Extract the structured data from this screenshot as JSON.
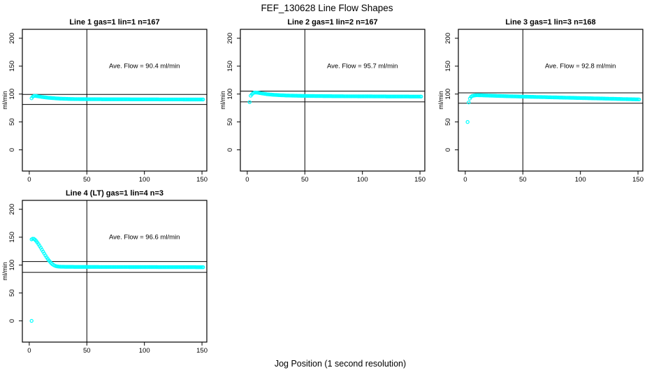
{
  "figure": {
    "title": "FEF_130628  Line Flow Shapes",
    "xlabel": "Jog Position (1 second resolution)",
    "background_color": "#ffffff",
    "point_color": "#00ffff",
    "line_color": "#000000",
    "point_style": "open-circle"
  },
  "chart_data": [
    {
      "type": "scatter",
      "title": "Line 1 gas=1 lin=1 n=167",
      "n": 167,
      "ylabel": "ml/min",
      "annotation": "Ave. Flow =  90.4  ml/min",
      "ave_flow_ml_min": 90.4,
      "annotation_xy": [
        100,
        150
      ],
      "xticks": [
        0,
        50,
        100,
        150
      ],
      "yticks": [
        0,
        50,
        100,
        150,
        200
      ],
      "xlim": [
        -6,
        154.2
      ],
      "ylim": [
        -38,
        216
      ],
      "vline_x": 50,
      "hlines": [
        99.4,
        81.4
      ],
      "grid": false,
      "legend": "none",
      "sample_step": 1,
      "points_keyframes": [
        [
          2,
          92.5
        ],
        [
          3,
          95.3
        ],
        [
          4,
          96.5
        ],
        [
          5,
          96.8
        ],
        [
          6,
          96.5
        ],
        [
          8,
          95.8
        ],
        [
          10,
          95.1
        ],
        [
          12,
          94.5
        ],
        [
          14,
          94.0
        ],
        [
          16,
          93.5
        ],
        [
          18,
          93.1
        ],
        [
          20,
          92.8
        ],
        [
          23,
          92.3
        ],
        [
          26,
          91.9
        ],
        [
          30,
          91.5
        ],
        [
          35,
          91.2
        ],
        [
          40,
          91.0
        ],
        [
          50,
          90.8
        ],
        [
          60,
          90.7
        ],
        [
          80,
          90.6
        ],
        [
          100,
          90.5
        ],
        [
          120,
          90.4
        ],
        [
          151,
          90.2
        ]
      ],
      "extra_points": []
    },
    {
      "type": "scatter",
      "title": "Line 2 gas=1 lin=2 n=167",
      "n": 167,
      "ylabel": "ml/min",
      "annotation": "Ave. Flow =  95.7  ml/min",
      "ave_flow_ml_min": 95.7,
      "annotation_xy": [
        100,
        150
      ],
      "xticks": [
        0,
        50,
        100,
        150
      ],
      "yticks": [
        0,
        50,
        100,
        150,
        200
      ],
      "xlim": [
        -6,
        154.2
      ],
      "ylim": [
        -38,
        216
      ],
      "vline_x": 50,
      "hlines": [
        105.3,
        86.1
      ],
      "grid": false,
      "legend": "none",
      "sample_step": 1,
      "points_keyframes": [
        [
          2,
          85.5
        ],
        [
          3,
          97.0
        ],
        [
          4,
          99.5
        ],
        [
          5,
          101.5
        ],
        [
          6,
          102.5
        ],
        [
          7,
          102.8
        ],
        [
          9,
          102.5
        ],
        [
          11,
          101.8
        ],
        [
          13,
          101.0
        ],
        [
          15,
          100.4
        ],
        [
          17,
          99.8
        ],
        [
          20,
          99.1
        ],
        [
          24,
          98.5
        ],
        [
          28,
          98.0
        ],
        [
          33,
          97.5
        ],
        [
          40,
          97.1
        ],
        [
          50,
          96.7
        ],
        [
          60,
          96.4
        ],
        [
          80,
          96.1
        ],
        [
          100,
          95.9
        ],
        [
          120,
          95.7
        ],
        [
          151,
          95.5
        ]
      ],
      "extra_points": []
    },
    {
      "type": "scatter",
      "title": "Line 3 gas=1 lin=3 n=168",
      "n": 168,
      "ylabel": "ml/min",
      "annotation": "Ave. Flow =  92.8  ml/min",
      "ave_flow_ml_min": 92.8,
      "annotation_xy": [
        100,
        150
      ],
      "xticks": [
        0,
        50,
        100,
        150
      ],
      "yticks": [
        0,
        50,
        100,
        150,
        200
      ],
      "xlim": [
        -6,
        154.2
      ],
      "ylim": [
        -38,
        216
      ],
      "vline_x": 50,
      "hlines": [
        102.1,
        83.5
      ],
      "grid": false,
      "legend": "none",
      "sample_step": 1,
      "points_keyframes": [
        [
          2,
          50.0
        ],
        [
          3,
          85.0
        ],
        [
          4,
          92.0
        ],
        [
          5,
          95.0
        ],
        [
          6,
          96.5
        ],
        [
          8,
          97.5
        ],
        [
          10,
          97.9
        ],
        [
          14,
          97.7
        ],
        [
          18,
          97.4
        ],
        [
          25,
          96.9
        ],
        [
          32,
          96.4
        ],
        [
          40,
          95.9
        ],
        [
          50,
          95.4
        ],
        [
          60,
          94.9
        ],
        [
          70,
          94.4
        ],
        [
          80,
          93.9
        ],
        [
          90,
          93.4
        ],
        [
          100,
          92.9
        ],
        [
          110,
          92.4
        ],
        [
          120,
          91.9
        ],
        [
          130,
          91.4
        ],
        [
          140,
          90.9
        ],
        [
          151,
          90.4
        ]
      ],
      "extra_points": []
    },
    {
      "type": "scatter",
      "title": "Line 4 (LT) gas=1 lin=4 n=3",
      "n": 3,
      "ylabel": "ml/min",
      "annotation": "Ave. Flow =  96.6  ml/min",
      "ave_flow_ml_min": 96.6,
      "annotation_xy": [
        100,
        150
      ],
      "xticks": [
        0,
        50,
        100,
        150
      ],
      "yticks": [
        0,
        50,
        100,
        150,
        200
      ],
      "xlim": [
        -6,
        154.2
      ],
      "ylim": [
        -38,
        216
      ],
      "vline_x": 50,
      "hlines": [
        106.3,
        86.9
      ],
      "grid": false,
      "legend": "none",
      "sample_step": 1,
      "points_keyframes": [
        [
          2,
          146.0
        ],
        [
          3,
          147.3
        ],
        [
          4,
          147.0
        ],
        [
          5,
          145.5
        ],
        [
          6,
          143.2
        ],
        [
          7,
          140.5
        ],
        [
          8,
          137.5
        ],
        [
          9,
          134.3
        ],
        [
          10,
          131.0
        ],
        [
          11,
          127.6
        ],
        [
          12,
          124.2
        ],
        [
          13,
          120.8
        ],
        [
          14,
          117.4
        ],
        [
          15,
          114.2
        ],
        [
          16,
          111.2
        ],
        [
          17,
          108.4
        ],
        [
          18,
          105.9
        ],
        [
          19,
          103.7
        ],
        [
          20,
          101.8
        ],
        [
          21,
          100.3
        ],
        [
          22,
          99.1
        ],
        [
          23,
          98.3
        ],
        [
          24,
          97.7
        ],
        [
          26,
          97.2
        ],
        [
          28,
          97.0
        ],
        [
          32,
          96.9
        ],
        [
          40,
          96.8
        ],
        [
          60,
          96.7
        ],
        [
          80,
          96.6
        ],
        [
          100,
          96.5
        ],
        [
          120,
          96.4
        ],
        [
          151,
          96.3
        ]
      ],
      "extra_points": [
        [
          2,
          0
        ]
      ]
    }
  ]
}
